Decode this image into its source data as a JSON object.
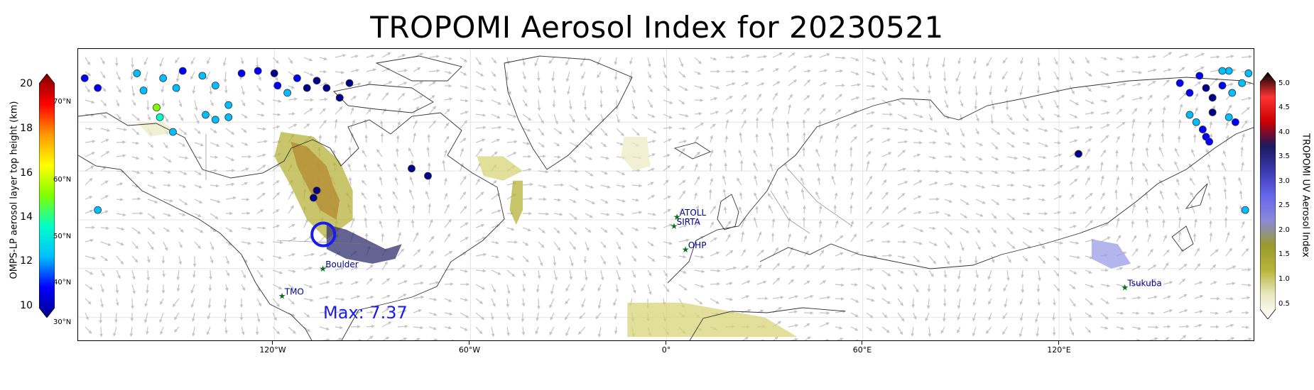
{
  "title": "TROPOMI Aerosol Index for 20230521",
  "max_label": "Max: 7.37",
  "left_colorbar": {
    "label": "OMPS-LP aerosol layer top height (km)",
    "ticks": [
      "20",
      "18",
      "16",
      "14",
      "12",
      "10"
    ],
    "range": [
      10,
      20
    ],
    "colors": [
      "#00008b",
      "#0000ff",
      "#00bfff",
      "#00ffc8",
      "#7fff00",
      "#ffff00",
      "#ff9900",
      "#ff0000",
      "#800000"
    ]
  },
  "lat_labels": [
    "70°N",
    "60°N",
    "50°N",
    "40°N",
    "30°N"
  ],
  "right_colorbar": {
    "label": "TROPOMI UV Aerosol Index",
    "ticks": [
      "5.0",
      "4.5",
      "4.0",
      "3.5",
      "3.0",
      "2.5",
      "2.0",
      "1.5",
      "1.0",
      "0.5"
    ],
    "range": [
      0.5,
      5.0
    ],
    "colors": [
      "#ffffff",
      "#e8e8c0",
      "#b7b336",
      "#9a9a30",
      "#8a8ad8",
      "#6666ee",
      "#3a3ab0",
      "#1a1a60",
      "#cc0000",
      "#ff3333",
      "#000000"
    ]
  },
  "lon_labels": [
    "120°W",
    "60°W",
    "0°",
    "60°E",
    "120°E"
  ],
  "stations": [
    {
      "name": "Boulder",
      "lon": -105.2,
      "lat": 40.0
    },
    {
      "name": "TMO",
      "lon": -117.7,
      "lat": 34.4
    },
    {
      "name": "ATOLL",
      "lon": 3.1,
      "lat": 50.6
    },
    {
      "name": "SIRTA",
      "lon": 2.2,
      "lat": 48.7
    },
    {
      "name": "OHP",
      "lon": 5.7,
      "lat": 43.9
    },
    {
      "name": "Tsukuba",
      "lon": 140.1,
      "lat": 36.1
    }
  ],
  "map_extent": {
    "lon": [
      -180,
      180
    ],
    "lat": [
      25,
      85
    ]
  },
  "highlight_circle": {
    "lon": -105,
    "lat": 47,
    "radius_deg": 15,
    "color": "#1a1aee"
  },
  "omps_points": [
    {
      "lon": -178,
      "lat": 79,
      "h": 11.8
    },
    {
      "lon": -174,
      "lat": 77,
      "h": 11.5
    },
    {
      "lon": -162,
      "lat": 80,
      "h": 12.2
    },
    {
      "lon": -160,
      "lat": 76.5,
      "h": 12.0
    },
    {
      "lon": -154,
      "lat": 79,
      "h": 12.1
    },
    {
      "lon": -150,
      "lat": 77,
      "h": 12.3
    },
    {
      "lon": -148,
      "lat": 80.5,
      "h": 11.6
    },
    {
      "lon": -142,
      "lat": 79.5,
      "h": 12.0
    },
    {
      "lon": -138,
      "lat": 77.5,
      "h": 12.4
    },
    {
      "lon": -130,
      "lat": 80,
      "h": 11.5
    },
    {
      "lon": -125,
      "lat": 80.5,
      "h": 10.8
    },
    {
      "lon": -120,
      "lat": 80,
      "h": 10.4
    },
    {
      "lon": -119,
      "lat": 77.5,
      "h": 11.6
    },
    {
      "lon": -116,
      "lat": 76,
      "h": 12.0
    },
    {
      "lon": -113,
      "lat": 79,
      "h": 10.8
    },
    {
      "lon": -110,
      "lat": 77,
      "h": 10.5
    },
    {
      "lon": -107,
      "lat": 78.5,
      "h": 10.3
    },
    {
      "lon": -104,
      "lat": 77,
      "h": 10.4
    },
    {
      "lon": -100,
      "lat": 75,
      "h": 10.2
    },
    {
      "lon": -97,
      "lat": 78,
      "h": 10.1
    },
    {
      "lon": -156,
      "lat": 73,
      "h": 15.2
    },
    {
      "lon": -155,
      "lat": 71,
      "h": 13.4
    },
    {
      "lon": -151,
      "lat": 68,
      "h": 12.6
    },
    {
      "lon": -141,
      "lat": 71.5,
      "h": 12.3
    },
    {
      "lon": -138,
      "lat": 70.5,
      "h": 12.1
    },
    {
      "lon": -134,
      "lat": 73.5,
      "h": 12.4
    },
    {
      "lon": -134,
      "lat": 71,
      "h": 12.0
    },
    {
      "lon": -174,
      "lat": 52,
      "h": 12.2
    },
    {
      "lon": -78,
      "lat": 60.5,
      "h": 10.3
    },
    {
      "lon": -73,
      "lat": 59,
      "h": 10.6
    },
    {
      "lon": -107,
      "lat": 56,
      "h": 10.2
    },
    {
      "lon": -108,
      "lat": 54.5,
      "h": 10.3
    },
    {
      "lon": 126,
      "lat": 63.5,
      "h": 10.2
    },
    {
      "lon": 157,
      "lat": 78,
      "h": 11.8
    },
    {
      "lon": 160,
      "lat": 76,
      "h": 11.5
    },
    {
      "lon": 163,
      "lat": 79.5,
      "h": 10.8
    },
    {
      "lon": 165,
      "lat": 77,
      "h": 10.5
    },
    {
      "lon": 167,
      "lat": 75,
      "h": 10.3
    },
    {
      "lon": 170,
      "lat": 77.5,
      "h": 11.6
    },
    {
      "lon": 173,
      "lat": 76,
      "h": 11.9
    },
    {
      "lon": 176,
      "lat": 78,
      "h": 12.0
    },
    {
      "lon": 172,
      "lat": 80.5,
      "h": 12.3
    },
    {
      "lon": 178,
      "lat": 80,
      "h": 12.4
    },
    {
      "lon": 170,
      "lat": 80.5,
      "h": 11.9
    },
    {
      "lon": 167,
      "lat": 72,
      "h": 10.4
    },
    {
      "lon": 160,
      "lat": 71.5,
      "h": 12.2
    },
    {
      "lon": 162,
      "lat": 70,
      "h": 11.9
    },
    {
      "lon": 164,
      "lat": 68.5,
      "h": 11.6
    },
    {
      "lon": 165,
      "lat": 67,
      "h": 11.4
    },
    {
      "lon": 166,
      "lat": 66,
      "h": 11.8
    },
    {
      "lon": 172,
      "lat": 71,
      "h": 12.1
    },
    {
      "lon": 174,
      "lat": 70,
      "h": 11.8
    },
    {
      "lon": 177,
      "lat": 52,
      "h": 12.4
    }
  ],
  "aerosol_plumes": [
    {
      "name": "plume-canada-core",
      "ai": 4.6,
      "points": [
        [
          -115,
          66
        ],
        [
          -110,
          65
        ],
        [
          -104,
          61
        ],
        [
          -102,
          57
        ],
        [
          -100,
          54
        ],
        [
          -101,
          50
        ],
        [
          -106,
          52
        ],
        [
          -110,
          57
        ],
        [
          -113,
          61
        ]
      ]
    },
    {
      "name": "plume-canada-yellow",
      "ai": 2.0,
      "points": [
        [
          -118,
          68
        ],
        [
          -108,
          67
        ],
        [
          -100,
          62
        ],
        [
          -96,
          56
        ],
        [
          -96,
          50
        ],
        [
          -104,
          46
        ],
        [
          -110,
          50
        ],
        [
          -115,
          57
        ],
        [
          -120,
          63
        ]
      ]
    },
    {
      "name": "plume-central",
      "ai": 4.2,
      "points": [
        [
          -104,
          49
        ],
        [
          -98,
          48
        ],
        [
          -92,
          46
        ],
        [
          -86,
          44
        ],
        [
          -81,
          45
        ],
        [
          -83,
          42
        ],
        [
          -90,
          41
        ],
        [
          -98,
          42
        ],
        [
          -104,
          44
        ]
      ]
    },
    {
      "name": "plume-atlantic-1",
      "ai": 1.7,
      "points": [
        [
          -58,
          63
        ],
        [
          -50,
          63
        ],
        [
          -44,
          60
        ],
        [
          -50,
          58
        ],
        [
          -56,
          59
        ]
      ]
    },
    {
      "name": "plume-atlantic-2",
      "ai": 1.9,
      "points": [
        [
          -47,
          58
        ],
        [
          -44,
          58
        ],
        [
          -44,
          52
        ],
        [
          -46,
          49
        ],
        [
          -48,
          52
        ]
      ]
    },
    {
      "name": "plume-europe-north",
      "ai": 1.3,
      "points": [
        [
          -13,
          67
        ],
        [
          -6,
          67
        ],
        [
          -5,
          61
        ],
        [
          -10,
          60
        ],
        [
          -14,
          63
        ]
      ]
    },
    {
      "name": "plume-alaska",
      "ai": 1.3,
      "points": [
        [
          -162,
          70
        ],
        [
          -154,
          70
        ],
        [
          -150,
          68
        ],
        [
          -158,
          67
        ]
      ]
    },
    {
      "name": "plume-japan",
      "ai": 2.8,
      "points": [
        [
          130,
          46
        ],
        [
          138,
          45
        ],
        [
          142,
          41
        ],
        [
          136,
          40
        ],
        [
          130,
          42
        ]
      ]
    },
    {
      "name": "plume-africa",
      "ai": 1.6,
      "points": [
        [
          -12,
          33
        ],
        [
          5,
          33
        ],
        [
          30,
          30
        ],
        [
          40,
          26
        ],
        [
          -12,
          26
        ]
      ]
    }
  ]
}
